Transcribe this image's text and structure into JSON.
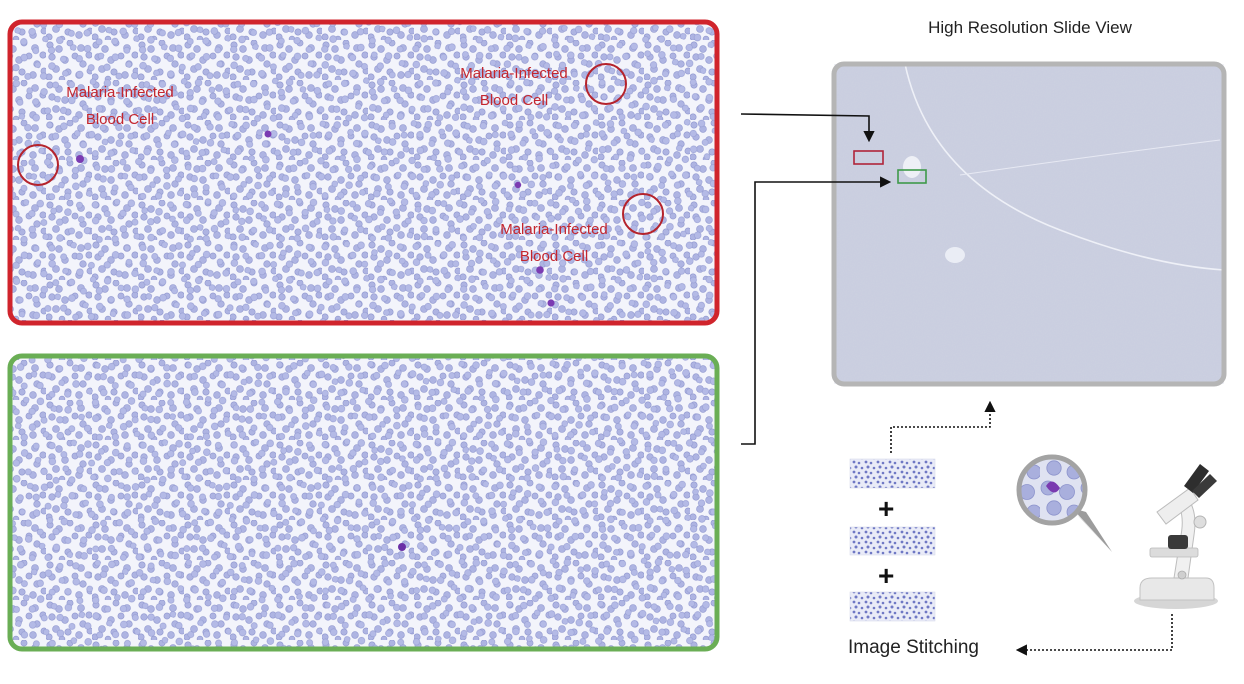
{
  "title": "High Resolution Slide View",
  "infected_panel": {
    "border_color": "#d0242c",
    "labels": [
      {
        "line1": "Malaria-Infected",
        "line2": "Blood Cell"
      },
      {
        "line1": "Malaria-Infected",
        "line2": "Blood Cell"
      },
      {
        "line1": "Malaria-Infected",
        "line2": "Blood Cell"
      }
    ]
  },
  "healthy_panel": {
    "border_color": "#6aae55"
  },
  "stitching": {
    "label": "Image Stitching",
    "operators": [
      "+",
      "+"
    ]
  },
  "icons": [
    "microscope-icon",
    "magnifier-bubble-icon"
  ],
  "colors": {
    "cell": "#aab0e0",
    "parasite": "#7a3ab0",
    "slide_background": "#ccd0df",
    "annotation_red": "#c4262e"
  }
}
